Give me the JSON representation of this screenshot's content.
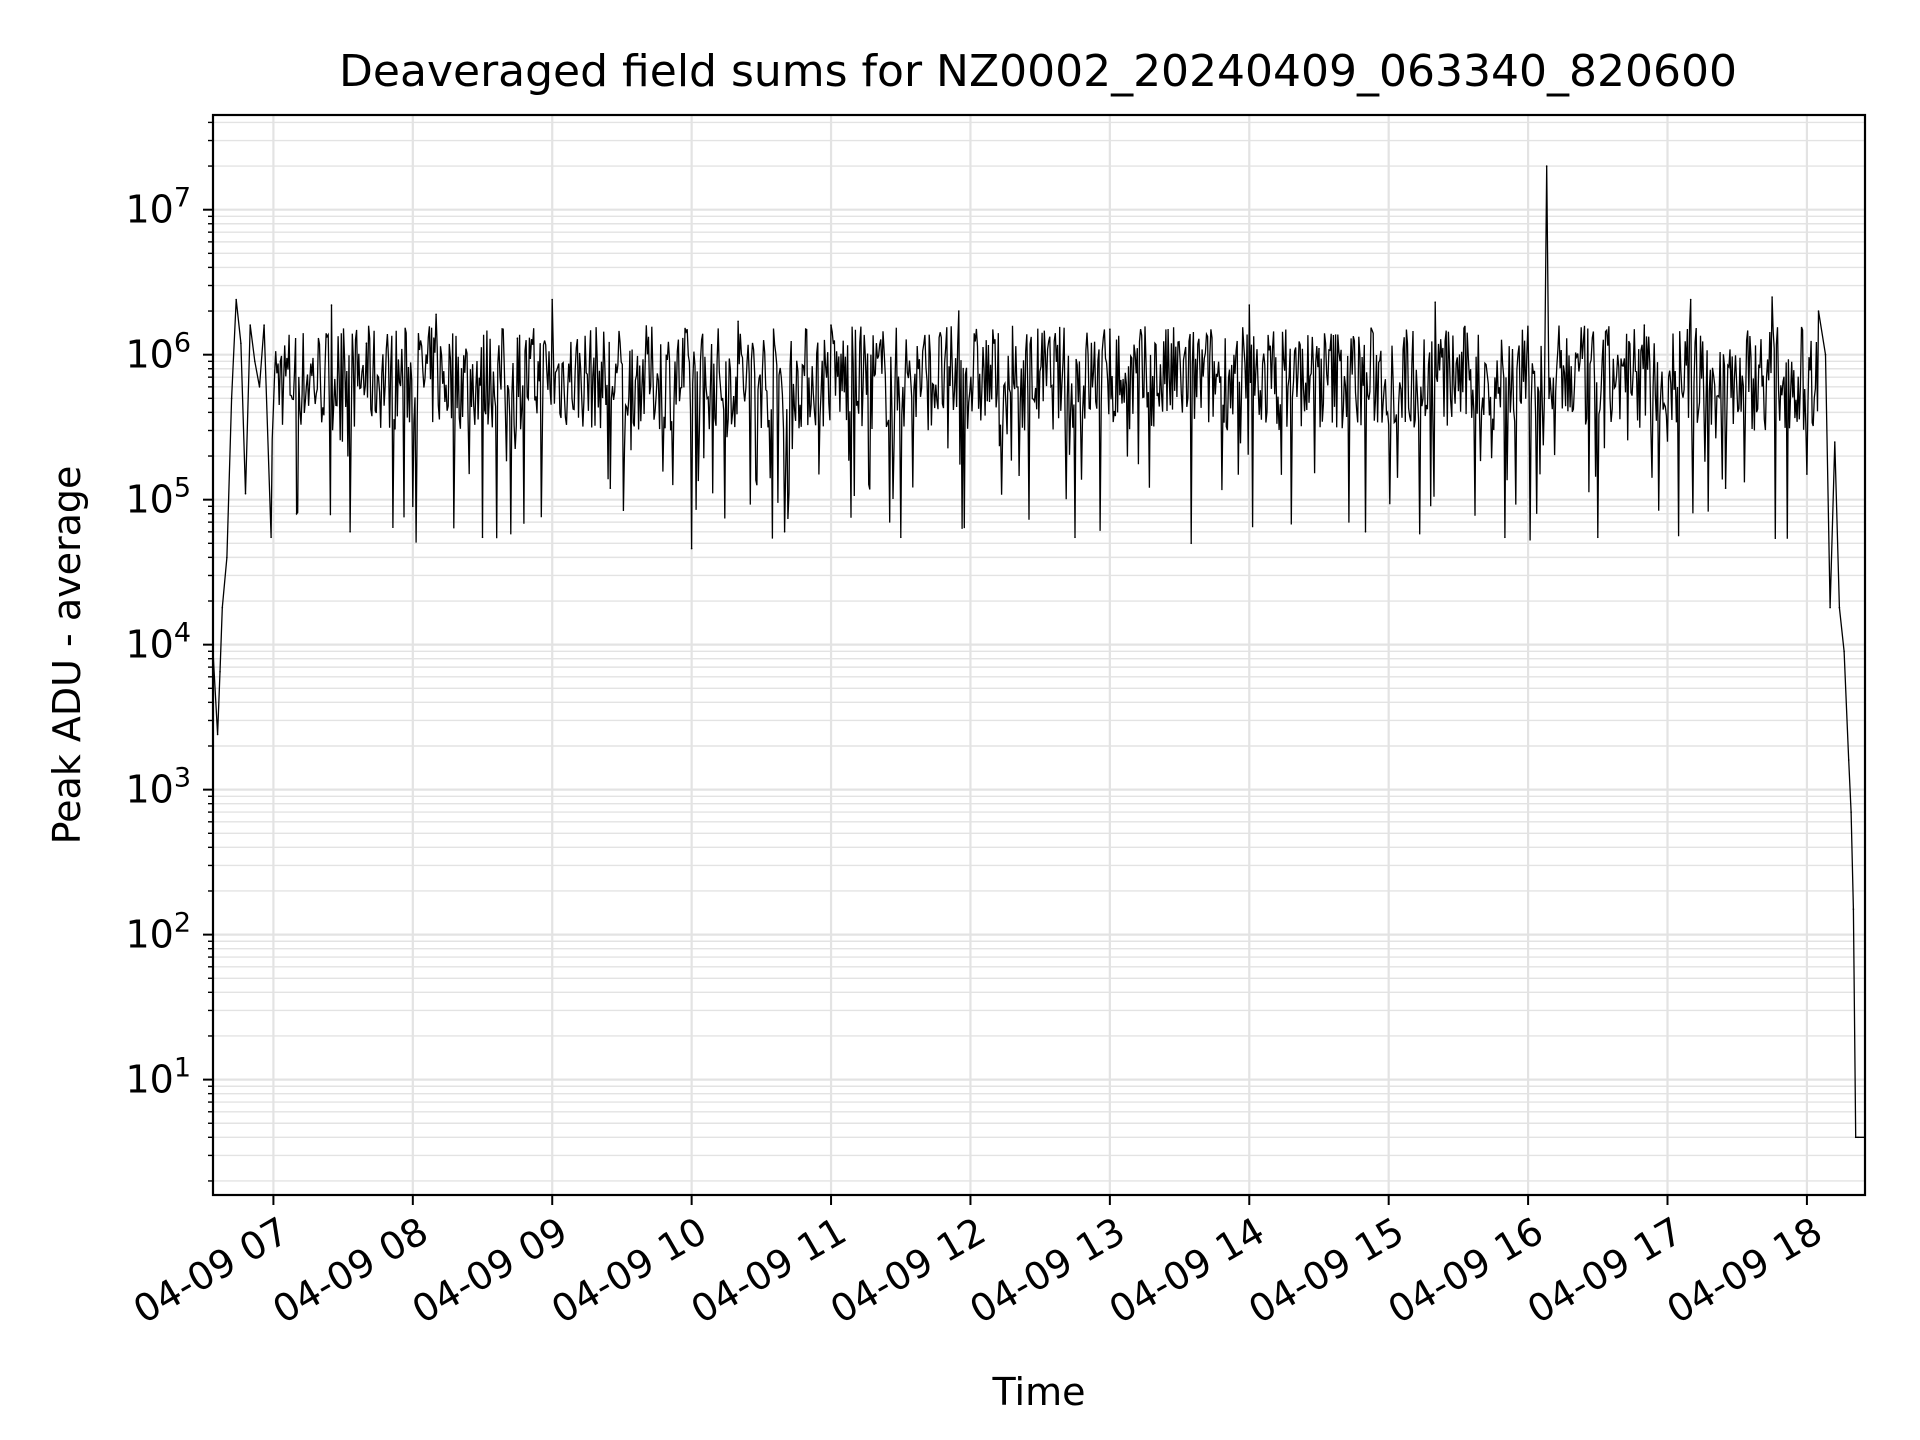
{
  "chart_data": {
    "type": "line",
    "title": "Deaveraged field sums for NZ0002_20240409_063340_820600",
    "xlabel": "Time",
    "ylabel": "Peak ADU - average",
    "y_scale": "log",
    "ylim": [
      1.6,
      45000000
    ],
    "xlim": [
      "2024-04-09 06:34",
      "2024-04-09 18:25"
    ],
    "grid": true,
    "x_ticks": [
      "04-09 07",
      "04-09 08",
      "04-09 09",
      "04-09 10",
      "04-09 11",
      "04-09 12",
      "04-09 13",
      "04-09 14",
      "04-09 15",
      "04-09 16",
      "04-09 17",
      "04-09 18"
    ],
    "y_ticks": [
      {
        "base": "10",
        "exp": "1",
        "value": 10
      },
      {
        "base": "10",
        "exp": "2",
        "value": 100
      },
      {
        "base": "10",
        "exp": "3",
        "value": 1000
      },
      {
        "base": "10",
        "exp": "4",
        "value": 10000
      },
      {
        "base": "10",
        "exp": "5",
        "value": 100000
      },
      {
        "base": "10",
        "exp": "6",
        "value": 1000000
      },
      {
        "base": "10",
        "exp": "7",
        "value": 10000000
      }
    ],
    "line_color": "#000000",
    "grid_color": "#e3e3e3",
    "series": [
      {
        "x": [
          "2024-04-09 06:34",
          "2024-04-09 06:36",
          "2024-04-09 06:37",
          "2024-04-09 06:38",
          "2024-04-09 06:40",
          "2024-04-09 06:42",
          "2024-04-09 06:44",
          "2024-04-09 06:46",
          "2024-04-09 06:48",
          "2024-04-09 06:50",
          "2024-04-09 06:52",
          "2024-04-09 06:54",
          "2024-04-09 06:56",
          "2024-04-09 06:59",
          "2024-04-09 07:03",
          "2024-04-09 07:10",
          "2024-04-09 07:25",
          "2024-04-09 07:33",
          "2024-04-09 07:40",
          "2024-04-09 08:00",
          "2024-04-09 08:10",
          "2024-04-09 08:30",
          "2024-04-09 08:45",
          "2024-04-09 09:00",
          "2024-04-09 09:25",
          "2024-04-09 09:40",
          "2024-04-09 10:00",
          "2024-04-09 10:20",
          "2024-04-09 10:40",
          "2024-04-09 11:00",
          "2024-04-09 11:30",
          "2024-04-09 11:55",
          "2024-04-09 12:20",
          "2024-04-09 12:45",
          "2024-04-09 13:00",
          "2024-04-09 13:35",
          "2024-04-09 14:00",
          "2024-04-09 14:30",
          "2024-04-09 14:50",
          "2024-04-09 15:20",
          "2024-04-09 15:50",
          "2024-04-09 16:07",
          "2024-04-09 16:08",
          "2024-04-09 16:09",
          "2024-04-09 16:30",
          "2024-04-09 16:50",
          "2024-04-09 17:10",
          "2024-04-09 17:25",
          "2024-04-09 17:45",
          "2024-04-09 18:00",
          "2024-04-09 18:05",
          "2024-04-09 18:08",
          "2024-04-09 18:10",
          "2024-04-09 18:12",
          "2024-04-09 18:14",
          "2024-04-09 18:16",
          "2024-04-09 18:18",
          "2024-04-09 18:19",
          "2024-04-09 18:20",
          "2024-04-09 18:21",
          "2024-04-09 18:22",
          "2024-04-09 18:25"
        ],
        "y": [
          9000,
          2400,
          6500,
          18000,
          40000,
          500000,
          2400000,
          1200000,
          110000,
          1600000,
          900000,
          600000,
          1600000,
          55000,
          900000,
          80000,
          2200000,
          60000,
          1200000,
          90000,
          1900000,
          55000,
          1300000,
          2400000,
          120000,
          900000,
          46000,
          1700000,
          60000,
          1600000,
          55000,
          2000000,
          600000,
          55000,
          1500000,
          50000,
          2200000,
          1100000,
          60000,
          2300000,
          55000,
          500000,
          20000000,
          500000,
          55000,
          1600000,
          2400000,
          120000,
          2500000,
          150000,
          2000000,
          1000000,
          18000,
          250000,
          18000,
          9000,
          1600,
          700,
          150,
          4,
          4,
          4
        ]
      }
    ],
    "series_envelope": {
      "upper_typical": 1600000,
      "lower_typical": 300000,
      "deep_dip_min": 50000
    }
  }
}
